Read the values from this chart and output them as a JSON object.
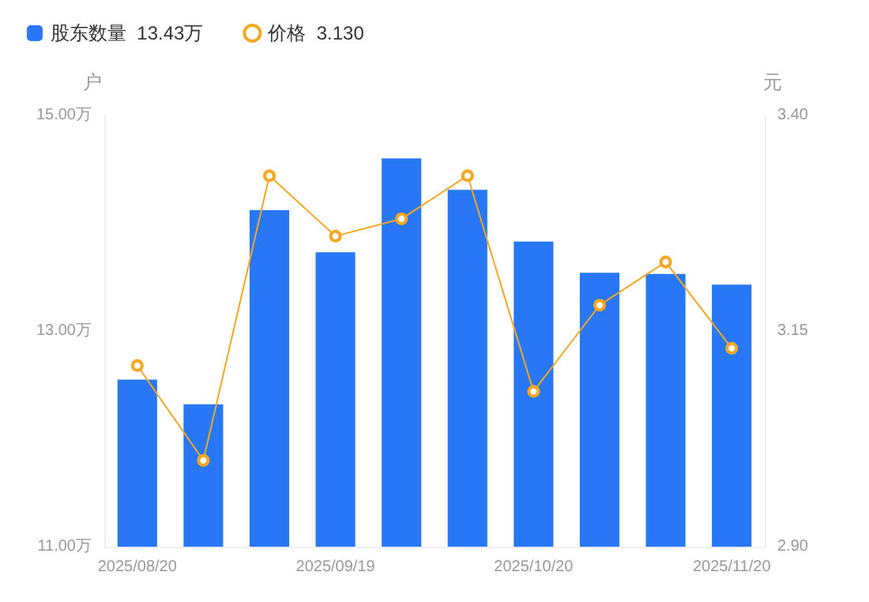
{
  "chart_data": {
    "type": "bar",
    "ylabel": "户",
    "y2label": "元",
    "categories": [
      "2025/08/20",
      null,
      null,
      "2025/09/19",
      null,
      null,
      "2025/10/20",
      null,
      null,
      "2025/11/20"
    ],
    "series": [
      {
        "name": "股东数量  13.43万",
        "color": "#2878f5",
        "values": [
          12.55,
          12.32,
          14.12,
          13.73,
          14.6,
          14.31,
          13.83,
          13.54,
          13.53,
          13.43
        ]
      },
      {
        "name": "价格  3.130",
        "type": "line",
        "axis": "y2",
        "color": "#f5a623",
        "marker": "circle",
        "values": [
          3.11,
          3.0,
          3.33,
          3.26,
          3.28,
          3.33,
          3.08,
          3.18,
          3.23,
          3.13
        ]
      }
    ],
    "ylim": [
      11,
      15
    ],
    "yticks": [
      {
        "value": 11,
        "label": "11.00万"
      },
      {
        "value": 13,
        "label": "13.00万"
      },
      {
        "value": 15,
        "label": "15.00万"
      }
    ],
    "y2lim": [
      2.9,
      3.4
    ],
    "y2ticks": [
      {
        "value": 2.9,
        "label": "2.90"
      },
      {
        "value": 3.15,
        "label": "3.15"
      },
      {
        "value": 3.4,
        "label": "3.40"
      }
    ],
    "grid": false,
    "legend": "top left"
  }
}
